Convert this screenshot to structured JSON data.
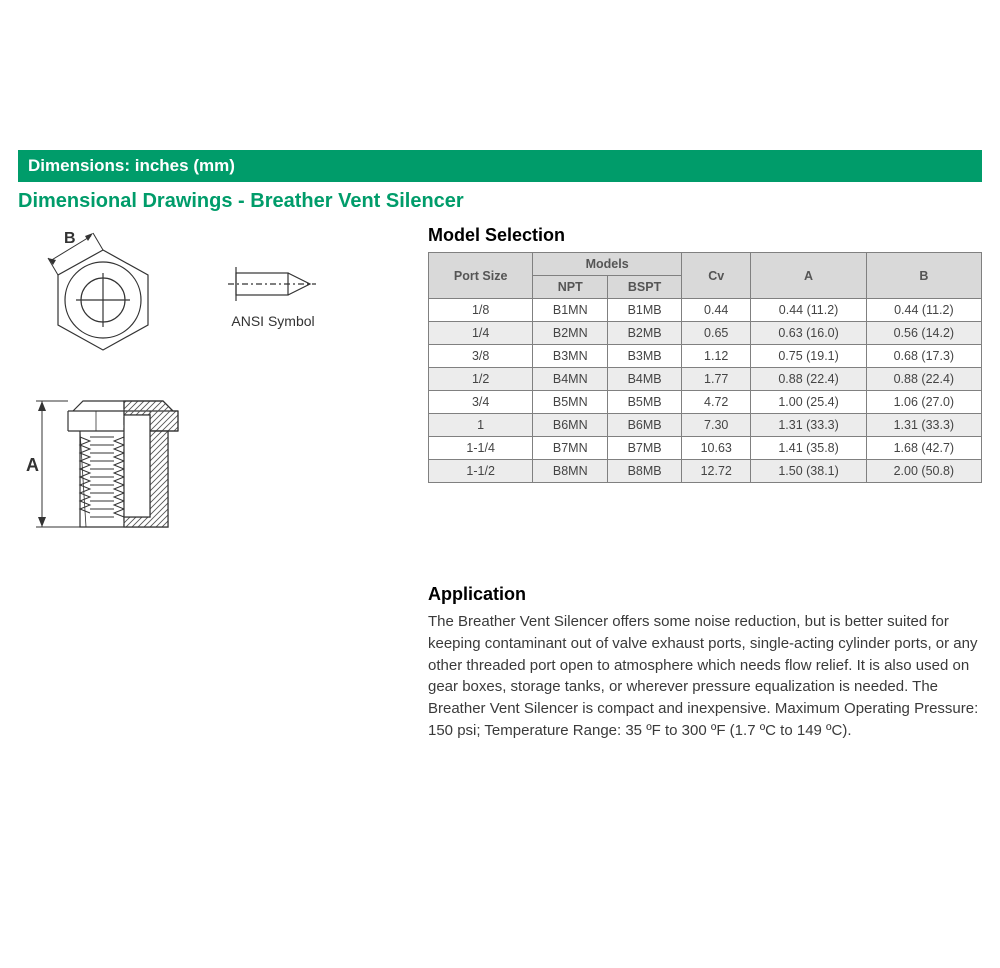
{
  "banner": "Dimensions: inches (mm)",
  "section_title": "Dimensional Drawings - Breather Vent Silencer",
  "drawings": {
    "dim_label_B": "B",
    "dim_label_A": "A",
    "symbol_label": "ANSI Symbol",
    "line_color": "#333333",
    "line_width": 1.2,
    "dim_line_width": 1,
    "hatch_color": "#555555"
  },
  "model_selection": {
    "title": "Model Selection",
    "header": {
      "port_size": "Port Size",
      "models": "Models",
      "npt": "NPT",
      "bspt": "BSPT",
      "cv": "Cv",
      "a": "A",
      "b": "B"
    },
    "rows": [
      {
        "port": "1/8",
        "npt": "B1MN",
        "bspt": "B1MB",
        "cv": "0.44",
        "a": "0.44 (11.2)",
        "b": "0.44 (11.2)"
      },
      {
        "port": "1/4",
        "npt": "B2MN",
        "bspt": "B2MB",
        "cv": "0.65",
        "a": "0.63 (16.0)",
        "b": "0.56 (14.2)"
      },
      {
        "port": "3/8",
        "npt": "B3MN",
        "bspt": "B3MB",
        "cv": "1.12",
        "a": "0.75 (19.1)",
        "b": "0.68 (17.3)"
      },
      {
        "port": "1/2",
        "npt": "B4MN",
        "bspt": "B4MB",
        "cv": "1.77",
        "a": "0.88 (22.4)",
        "b": "0.88 (22.4)"
      },
      {
        "port": "3/4",
        "npt": "B5MN",
        "bspt": "B5MB",
        "cv": "4.72",
        "a": "1.00 (25.4)",
        "b": "1.06 (27.0)"
      },
      {
        "port": "1",
        "npt": "B6MN",
        "bspt": "B6MB",
        "cv": "7.30",
        "a": "1.31 (33.3)",
        "b": "1.31 (33.3)"
      },
      {
        "port": "1-1/4",
        "npt": "B7MN",
        "bspt": "B7MB",
        "cv": "10.63",
        "a": "1.41 (35.8)",
        "b": "1.68 (42.7)"
      },
      {
        "port": "1-1/2",
        "npt": "B8MN",
        "bspt": "B8MB",
        "cv": "12.72",
        "a": "1.50 (38.1)",
        "b": "2.00 (50.8)"
      }
    ],
    "alt_row_bg": "#ececec",
    "header_bg": "#d9d9d9",
    "border_color": "#808080",
    "font_size": 12.5
  },
  "application": {
    "title": "Application",
    "text": "The Breather Vent Silencer offers some noise reduction, but is better suited for keeping contaminant out of valve exhaust ports, single-acting cylinder ports, or any other threaded port open to atmosphere which needs flow relief. It is also used on gear boxes, storage tanks, or wherever pressure equalization is needed. The Breather Vent Silencer is compact and inexpensive. Maximum Operating Pressure: 150 psi; Temperature Range: 35 ºF to 300 ºF (1.7 ºC to 149 ºC)."
  },
  "colors": {
    "brand_green": "#009c6a",
    "background": "#ffffff",
    "text": "#333333"
  }
}
